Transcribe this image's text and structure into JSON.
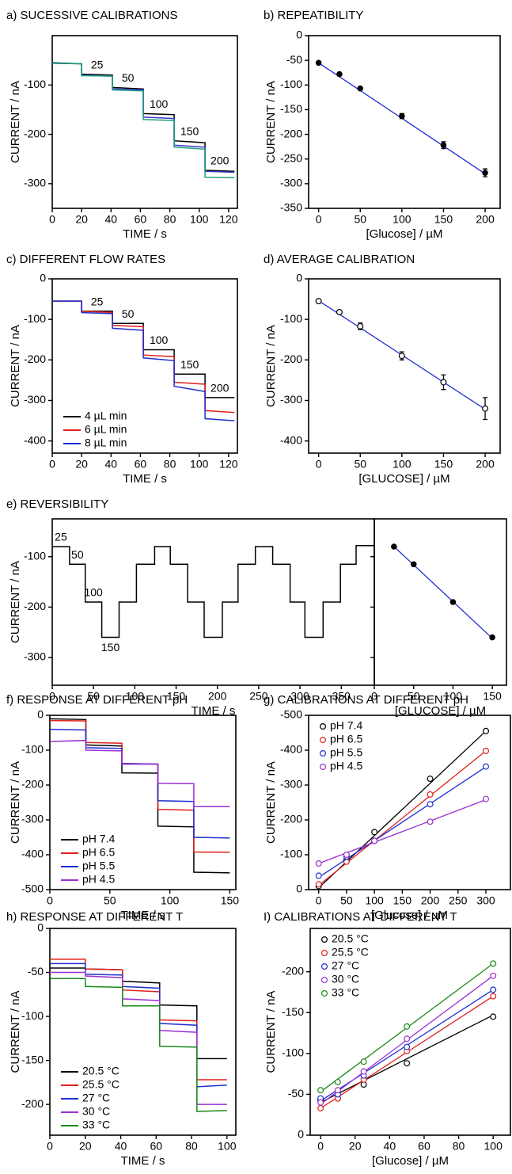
{
  "chart_data": [
    {
      "type": "line",
      "title": "a) SUCESSIVE CALIBRATIONS",
      "xlabel": "TIME / s",
      "ylabel": "CURRENT / nA",
      "xlim": [
        0,
        126
      ],
      "ylim": [
        -350,
        0
      ],
      "xticks": [
        0,
        20,
        40,
        60,
        80,
        100,
        120
      ],
      "yticks": [
        -100,
        -200,
        -300
      ],
      "x": [
        0,
        20,
        20,
        41,
        41,
        62,
        62,
        83,
        83,
        104,
        104,
        124
      ],
      "series": [
        {
          "color": "#000000",
          "values": [
            -55,
            -57,
            -78,
            -80,
            -105,
            -108,
            -158,
            -160,
            -213,
            -217,
            -273,
            -275
          ]
        },
        {
          "color": "#3b3bd0",
          "values": [
            -56,
            -57,
            -80,
            -82,
            -108,
            -110,
            -165,
            -168,
            -222,
            -226,
            -275,
            -277
          ]
        },
        {
          "color": "#1fa07c",
          "values": [
            -56,
            -57,
            -81,
            -82,
            -110,
            -112,
            -170,
            -172,
            -226,
            -230,
            -287,
            -288
          ]
        }
      ],
      "annotations": [
        "25",
        "50",
        "100",
        "150",
        "200"
      ]
    },
    {
      "type": "scatter",
      "title": "b) REPEATIBILITY",
      "xlabel": "[Glucose] / µM",
      "ylabel": "CURRENT / nA",
      "xlim": [
        -12,
        218
      ],
      "ylim": [
        -350,
        0
      ],
      "xticks": [
        0,
        50,
        100,
        150,
        200
      ],
      "yticks": [
        0,
        -50,
        -100,
        -150,
        -200,
        -250,
        -300,
        -350
      ],
      "marker": "filled",
      "x": [
        0,
        25,
        50,
        100,
        150,
        200
      ],
      "fit_x": [
        0,
        200
      ],
      "series": [
        {
          "color": "#000000",
          "line_color": "#1f2fd0",
          "values": [
            -55,
            -78,
            -107,
            -163,
            -222,
            -278
          ],
          "errors": [
            2,
            2,
            3,
            5,
            7,
            8
          ],
          "fit_values": [
            -55,
            -280
          ]
        }
      ]
    },
    {
      "type": "line",
      "title": "c) DIFFERENT FLOW RATES",
      "xlabel": "TIME / s",
      "ylabel": "CURRENT / nA",
      "xlim": [
        0,
        126
      ],
      "ylim": [
        -430,
        0
      ],
      "xticks": [
        0,
        20,
        40,
        60,
        80,
        100,
        120
      ],
      "yticks": [
        0,
        -100,
        -200,
        -300,
        -400
      ],
      "legend": "lower left",
      "x": [
        0,
        20,
        20,
        41,
        41,
        62,
        62,
        83,
        83,
        104,
        104,
        124
      ],
      "series": [
        {
          "name": "4 µL min",
          "color": "#000000",
          "values": [
            -55,
            -55,
            -80,
            -80,
            -110,
            -110,
            -175,
            -175,
            -235,
            -235,
            -293,
            -293
          ]
        },
        {
          "name": "6 µL min",
          "color": "#e0201b",
          "values": [
            -55,
            -55,
            -80,
            -83,
            -115,
            -118,
            -188,
            -192,
            -255,
            -260,
            -325,
            -330
          ]
        },
        {
          "name": "8 µL min",
          "color": "#1f2fd0",
          "values": [
            -55,
            -55,
            -83,
            -86,
            -122,
            -127,
            -195,
            -202,
            -265,
            -278,
            -345,
            -350
          ]
        }
      ],
      "annotations": [
        "25",
        "50",
        "100",
        "150",
        "200"
      ]
    },
    {
      "type": "scatter",
      "title": "d) AVERAGE CALIBRATION",
      "xlabel": "[GLUCOSE] / µM",
      "ylabel": "CURRENT / nA",
      "xlim": [
        -12,
        218
      ],
      "ylim": [
        -430,
        0
      ],
      "xticks": [
        0,
        50,
        100,
        150,
        200
      ],
      "yticks": [
        0,
        -100,
        -200,
        -300,
        -400
      ],
      "marker": "open",
      "x": [
        0,
        25,
        50,
        100,
        150,
        200
      ],
      "fit_x": [
        0,
        200
      ],
      "series": [
        {
          "color": "#000000",
          "line_color": "#1f2fd0",
          "values": [
            -55,
            -82,
            -117,
            -190,
            -255,
            -320
          ],
          "errors": [
            3,
            3,
            8,
            10,
            18,
            27
          ],
          "fit_values": [
            -54,
            -322
          ]
        }
      ]
    },
    {
      "type": "line",
      "title": "e) REVERSIBILITY",
      "xlabel": "TIME / s",
      "ylabel": "CURRENT / nA",
      "xlim": [
        0,
        390
      ],
      "ylim": [
        -355,
        -25
      ],
      "xticks": [
        0,
        50,
        100,
        150,
        200,
        250,
        300,
        350
      ],
      "yticks": [
        -100,
        -200,
        -300
      ],
      "x": [
        0,
        21,
        21,
        40,
        40,
        60,
        60,
        81,
        81,
        102,
        102,
        124,
        124,
        143,
        143,
        164,
        164,
        184,
        184,
        206,
        206,
        225,
        225,
        246,
        246,
        267,
        267,
        288,
        288,
        306,
        306,
        328,
        328,
        349,
        349,
        368,
        368,
        390
      ],
      "series": [
        {
          "color": "#000000",
          "values": [
            -80,
            -80,
            -115,
            -115,
            -190,
            -190,
            -260,
            -260,
            -190,
            -190,
            -115,
            -115,
            -80,
            -80,
            -115,
            -115,
            -190,
            -190,
            -260,
            -260,
            -190,
            -190,
            -115,
            -115,
            -80,
            -80,
            -115,
            -115,
            -190,
            -190,
            -260,
            -260,
            -190,
            -190,
            -115,
            -115,
            -78,
            -78
          ]
        }
      ],
      "annotations": [
        "25",
        "50",
        "100",
        "150"
      ]
    },
    {
      "type": "scatter",
      "xlabel": "[GLUCOSE] / µM",
      "xlim": [
        0,
        168
      ],
      "ylim": [
        -355,
        -25
      ],
      "xticks": [
        0,
        50,
        100,
        150
      ],
      "yticks": [
        -100,
        -200,
        -300
      ],
      "marker": "filled",
      "x": [
        25,
        50,
        100,
        150
      ],
      "fit_x": [
        25,
        150
      ],
      "series": [
        {
          "color": "#000000",
          "line_color": "#1f2fd0",
          "values": [
            -80,
            -115,
            -190,
            -260
          ],
          "fit_values": [
            -80,
            -262
          ]
        }
      ]
    },
    {
      "type": "line",
      "title": "f) RESPONSE AT DIFFERENT pH",
      "xlabel": "TIME / s",
      "ylabel": "CURRENT / nA",
      "xlim": [
        0,
        155
      ],
      "ylim": [
        -500,
        0
      ],
      "xticks": [
        0,
        50,
        100,
        150
      ],
      "yticks": [
        0,
        -100,
        -200,
        -300,
        -400,
        -500
      ],
      "legend": "lower left",
      "x": [
        0,
        30,
        30,
        60,
        60,
        90,
        90,
        120,
        120,
        150
      ],
      "series": [
        {
          "name": "pH 7.4",
          "color": "#000000",
          "values": [
            -10,
            -12,
            -85,
            -88,
            -165,
            -166,
            -318,
            -320,
            -450,
            -452
          ]
        },
        {
          "name": "pH 6.5",
          "color": "#e0201b",
          "values": [
            -15,
            -16,
            -78,
            -80,
            -138,
            -140,
            -270,
            -272,
            -392,
            -393
          ]
        },
        {
          "name": "pH 5.5",
          "color": "#1f2fd0",
          "values": [
            -40,
            -42,
            -93,
            -95,
            -138,
            -140,
            -245,
            -247,
            -350,
            -352
          ]
        },
        {
          "name": "pH 4.5",
          "color": "#9b30d0",
          "values": [
            -75,
            -72,
            -100,
            -102,
            -140,
            -140,
            -195,
            -196,
            -262,
            -262
          ]
        }
      ]
    },
    {
      "type": "scatter",
      "title": "g) CALIBRATIONS AT DIFFERENT pH",
      "xlabel": "[Glucose] / µM",
      "ylabel": "CURRENT / nA",
      "xlim": [
        -18,
        344
      ],
      "ylim": [
        0,
        -500
      ],
      "xticks": [
        0,
        50,
        100,
        150,
        200,
        250,
        300
      ],
      "yticks": [
        0,
        -100,
        -200,
        -300,
        -400,
        -500
      ],
      "legend": "upper left",
      "marker": "open",
      "x": [
        0,
        50,
        100,
        200,
        300
      ],
      "fit_x": [
        0,
        300
      ],
      "series": [
        {
          "name": "pH 7.4",
          "color": "#000000",
          "values": [
            -10,
            -85,
            -165,
            -318,
            -455
          ],
          "fit_values": [
            -5,
            -455
          ]
        },
        {
          "name": "pH 6.5",
          "color": "#e0201b",
          "values": [
            -15,
            -80,
            -140,
            -273,
            -398
          ],
          "fit_values": [
            -12,
            -398
          ]
        },
        {
          "name": "pH 5.5",
          "color": "#1f2fd0",
          "values": [
            -40,
            -95,
            -140,
            -245,
            -353
          ],
          "fit_values": [
            -35,
            -352
          ]
        },
        {
          "name": "pH 4.5",
          "color": "#9b30d0",
          "values": [
            -75,
            -100,
            -140,
            -195,
            -260
          ],
          "fit_values": [
            -75,
            -258
          ]
        }
      ]
    },
    {
      "type": "line",
      "title": "h) RESPONSE AT DIFFERENT T",
      "xlabel": "TIME / s",
      "ylabel": "CURRENT / nA",
      "xlim": [
        0,
        105
      ],
      "ylim": [
        -235,
        0
      ],
      "xticks": [
        0,
        20,
        40,
        60,
        80,
        100
      ],
      "yticks": [
        0,
        -50,
        -100,
        -150,
        -200
      ],
      "legend": "lower left",
      "x": [
        0,
        20,
        20,
        41,
        41,
        62,
        62,
        83,
        83,
        100
      ],
      "series": [
        {
          "name": "20.5 °C",
          "color": "#000000",
          "values": [
            -45,
            -45,
            -46,
            -47,
            -60,
            -62,
            -87,
            -88,
            -148,
            -148
          ]
        },
        {
          "name": "25.5 °C",
          "color": "#e0201b",
          "values": [
            -35,
            -35,
            -46,
            -47,
            -70,
            -72,
            -104,
            -105,
            -172,
            -172
          ]
        },
        {
          "name": "27 °C",
          "color": "#1f2fd0",
          "values": [
            -40,
            -40,
            -52,
            -53,
            -66,
            -68,
            -108,
            -110,
            -180,
            -178
          ]
        },
        {
          "name": "30 °C",
          "color": "#9b30d0",
          "values": [
            -50,
            -50,
            -54,
            -56,
            -80,
            -82,
            -116,
            -118,
            -200,
            -200
          ]
        },
        {
          "name": "33 °C",
          "color": "#1a8a1a",
          "values": [
            -57,
            -57,
            -66,
            -67,
            -88,
            -88,
            -134,
            -135,
            -208,
            -207
          ]
        }
      ]
    },
    {
      "type": "scatter",
      "title": "I) CALIBRATIONS AT DIFFERENT T",
      "xlabel": "[Glucose] / µM",
      "ylabel": "CURRENT / nA",
      "xlim": [
        -6,
        110
      ],
      "ylim": [
        0,
        -253
      ],
      "xticks": [
        0,
        20,
        40,
        60,
        80,
        100
      ],
      "yticks": [
        0,
        -50,
        -100,
        -150,
        -200
      ],
      "legend": "upper left",
      "marker": "open",
      "x": [
        0,
        10,
        25,
        50,
        100
      ],
      "fit_x": [
        0,
        100
      ],
      "series": [
        {
          "name": "20.5 °C",
          "color": "#000000",
          "values": [
            -43,
            -45,
            -62,
            -88,
            -145
          ],
          "fit_values": [
            -40,
            -147
          ]
        },
        {
          "name": "25.5 °C",
          "color": "#e0201b",
          "values": [
            -33,
            -45,
            -68,
            -103,
            -170
          ],
          "fit_values": [
            -33,
            -170
          ]
        },
        {
          "name": "27 °C",
          "color": "#1f2fd0",
          "values": [
            -45,
            -50,
            -73,
            -108,
            -178
          ],
          "fit_values": [
            -42,
            -178
          ]
        },
        {
          "name": "30 °C",
          "color": "#9b30d0",
          "values": [
            -40,
            -55,
            -78,
            -118,
            -195
          ],
          "fit_values": [
            -38,
            -195
          ]
        },
        {
          "name": "33 °C",
          "color": "#1a8a1a",
          "values": [
            -55,
            -65,
            -90,
            -133,
            -210
          ],
          "fit_values": [
            -53,
            -210
          ]
        }
      ]
    }
  ]
}
